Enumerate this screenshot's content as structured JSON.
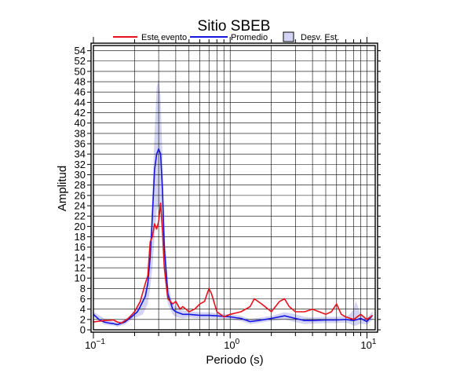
{
  "chart_data": {
    "type": "line",
    "title": "Sitio SBEB",
    "xlabel": "Periodo (s)",
    "ylabel": "Amplitud",
    "xscale": "log",
    "xlim": [
      0.1,
      11.5
    ],
    "ylim": [
      0,
      55
    ],
    "grid": true,
    "legend_position": "top",
    "x_tick_labels": [
      {
        "value": 0.1,
        "base": "10",
        "exp": "−1"
      },
      {
        "value": 1,
        "base": "10",
        "exp": "0"
      },
      {
        "value": 10,
        "base": "10",
        "exp": "1"
      }
    ],
    "y_ticks": [
      0,
      2,
      4,
      6,
      8,
      10,
      12,
      14,
      16,
      18,
      20,
      22,
      24,
      26,
      28,
      30,
      32,
      34,
      36,
      38,
      40,
      42,
      44,
      46,
      48,
      50,
      52,
      54
    ],
    "legend": [
      {
        "label": "Este evento",
        "kind": "line",
        "color": "#e8101a"
      },
      {
        "label": "Promedio",
        "kind": "line",
        "color": "#1616e0"
      },
      {
        "label": "Desv. Est.",
        "kind": "box",
        "color": "#d3d3f3"
      }
    ],
    "series": [
      {
        "name": "Este evento",
        "color": "#e8101a",
        "x": [
          0.1,
          0.12,
          0.14,
          0.15,
          0.16,
          0.18,
          0.2,
          0.22,
          0.24,
          0.25,
          0.26,
          0.27,
          0.28,
          0.29,
          0.3,
          0.31,
          0.32,
          0.33,
          0.35,
          0.38,
          0.4,
          0.43,
          0.45,
          0.5,
          0.55,
          0.6,
          0.65,
          0.7,
          0.73,
          0.75,
          0.8,
          0.9,
          1.0,
          1.2,
          1.4,
          1.5,
          1.7,
          2.0,
          2.3,
          2.5,
          2.7,
          3.0,
          3.5,
          4.0,
          5.0,
          5.5,
          6.0,
          6.5,
          7.0,
          8.0,
          9.0,
          10.0,
          11.0
        ],
        "y": [
          1.5,
          1.8,
          1.9,
          1.5,
          1.3,
          2.2,
          3.5,
          5.5,
          9.0,
          10.5,
          17.0,
          18.0,
          20.5,
          19.5,
          21.0,
          24.5,
          19.0,
          12.0,
          6.0,
          5.0,
          5.5,
          4.0,
          4.5,
          3.5,
          4.0,
          5.0,
          5.5,
          8.0,
          7.0,
          6.0,
          3.5,
          2.5,
          3.0,
          3.5,
          4.5,
          6.0,
          5.0,
          3.5,
          5.5,
          6.0,
          4.5,
          3.5,
          3.5,
          4.0,
          3.0,
          3.5,
          5.0,
          3.0,
          2.5,
          2.0,
          3.0,
          2.0,
          2.8
        ]
      },
      {
        "name": "Promedio",
        "color": "#1616e0",
        "x": [
          0.1,
          0.11,
          0.12,
          0.13,
          0.14,
          0.15,
          0.17,
          0.19,
          0.21,
          0.22,
          0.24,
          0.25,
          0.26,
          0.27,
          0.28,
          0.29,
          0.3,
          0.31,
          0.32,
          0.33,
          0.35,
          0.38,
          0.4,
          0.45,
          0.5,
          0.6,
          0.7,
          0.8,
          1.0,
          1.2,
          1.4,
          1.6,
          1.8,
          2.0,
          2.5,
          3.0,
          3.5,
          4.0,
          5.0,
          6.0,
          7.0,
          8.0,
          9.0,
          10.0,
          11.0
        ],
        "y": [
          3.0,
          2.0,
          1.5,
          1.3,
          1.2,
          1.0,
          1.5,
          2.5,
          3.5,
          4.5,
          6.5,
          9.0,
          14.0,
          22.0,
          31.0,
          34.0,
          35.0,
          34.0,
          27.0,
          16.0,
          7.0,
          4.0,
          3.5,
          3.0,
          3.0,
          2.8,
          2.8,
          2.7,
          2.5,
          2.2,
          1.6,
          1.8,
          2.0,
          2.2,
          2.7,
          2.2,
          1.8,
          1.8,
          1.9,
          1.9,
          2.0,
          1.8,
          2.2,
          1.6,
          2.8
        ]
      }
    ],
    "std_band": {
      "name": "Desv. Est.",
      "color": "#d3d3f3",
      "x": [
        0.1,
        0.12,
        0.14,
        0.15,
        0.17,
        0.19,
        0.21,
        0.23,
        0.25,
        0.26,
        0.27,
        0.28,
        0.29,
        0.3,
        0.31,
        0.32,
        0.33,
        0.35,
        0.38,
        0.4,
        0.45,
        0.5,
        0.6,
        0.7,
        0.8,
        1.0,
        1.2,
        1.4,
        1.6,
        2.0,
        2.5,
        3.0,
        3.5,
        4.0,
        5.0,
        6.0,
        7.0,
        7.5,
        8.0,
        8.3,
        8.6,
        9.0,
        10.0,
        11.0
      ],
      "upper": [
        3.5,
        2.2,
        1.6,
        1.5,
        2.0,
        3.0,
        4.5,
        6.0,
        10.0,
        16.0,
        26.0,
        38.0,
        47.0,
        48.5,
        45.0,
        33.0,
        20.0,
        9.0,
        5.0,
        4.5,
        3.8,
        3.6,
        3.4,
        3.4,
        3.2,
        3.0,
        2.7,
        2.1,
        2.3,
        2.7,
        3.4,
        3.0,
        2.5,
        2.4,
        2.5,
        2.5,
        2.6,
        3.0,
        4.0,
        5.5,
        4.5,
        3.0,
        2.2,
        3.6
      ],
      "lower": [
        2.5,
        1.0,
        0.8,
        0.6,
        1.0,
        2.0,
        2.5,
        3.0,
        5.0,
        8.0,
        12.0,
        18.0,
        23.0,
        24.0,
        23.0,
        20.0,
        13.0,
        5.0,
        3.0,
        2.5,
        2.2,
        2.4,
        2.2,
        2.2,
        2.2,
        2.0,
        1.7,
        1.1,
        1.3,
        1.7,
        2.0,
        1.5,
        1.1,
        1.2,
        1.3,
        1.3,
        1.4,
        1.2,
        0.8,
        0.8,
        1.0,
        1.2,
        1.0,
        2.0
      ]
    }
  }
}
